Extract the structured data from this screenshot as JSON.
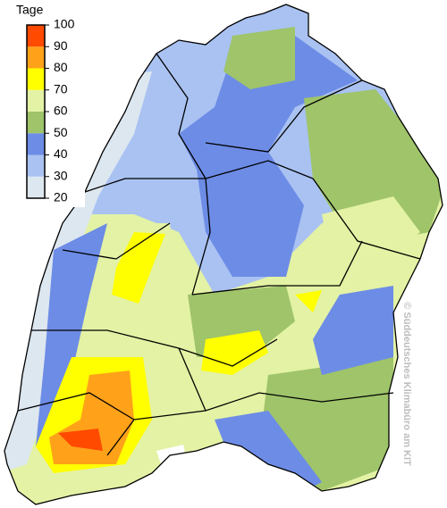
{
  "legend": {
    "title": "Tage",
    "ticks": [
      20,
      30,
      40,
      50,
      60,
      70,
      80,
      90,
      100
    ],
    "colors": [
      "#dde7f0",
      "#a9c2f2",
      "#6d8ce6",
      "#9fc46a",
      "#e3f2a4",
      "#ffff00",
      "#ffa21a",
      "#ff4a00"
    ]
  },
  "credit": "© Süddeutsches Klimabüro am KIT"
}
